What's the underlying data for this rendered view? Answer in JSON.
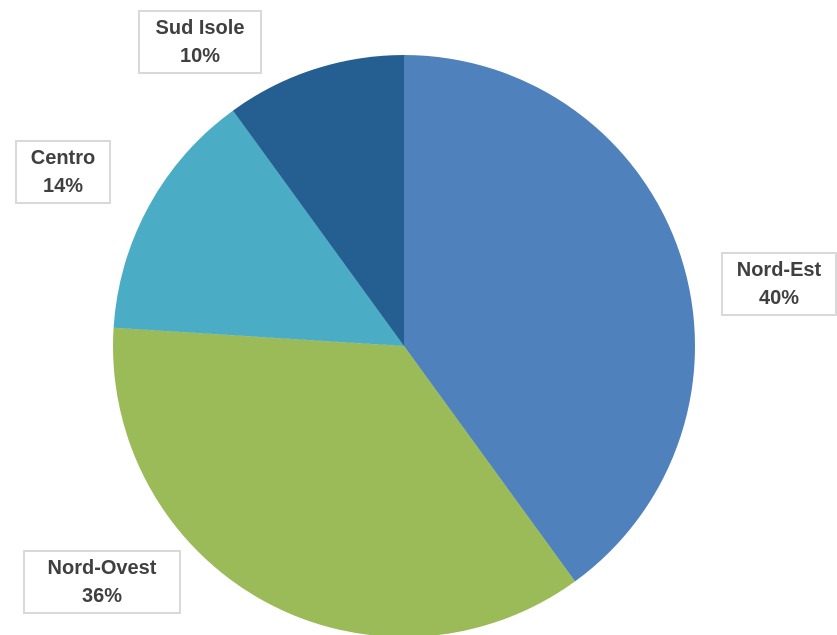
{
  "chart_data": {
    "type": "pie",
    "title": "",
    "categories": [
      "Nord-Est",
      "Nord-Ovest",
      "Centro",
      "Sud Isole"
    ],
    "values": [
      40,
      36,
      14,
      10
    ],
    "value_labels": [
      "40%",
      "36%",
      "14%",
      "10%"
    ],
    "colors": [
      "#4f81bd",
      "#9bbb59",
      "#4bacc6",
      "#255e91"
    ],
    "start_angle_deg": 0,
    "direction": "clockwise",
    "legend": "none",
    "data_labels": "outside, boxed"
  }
}
